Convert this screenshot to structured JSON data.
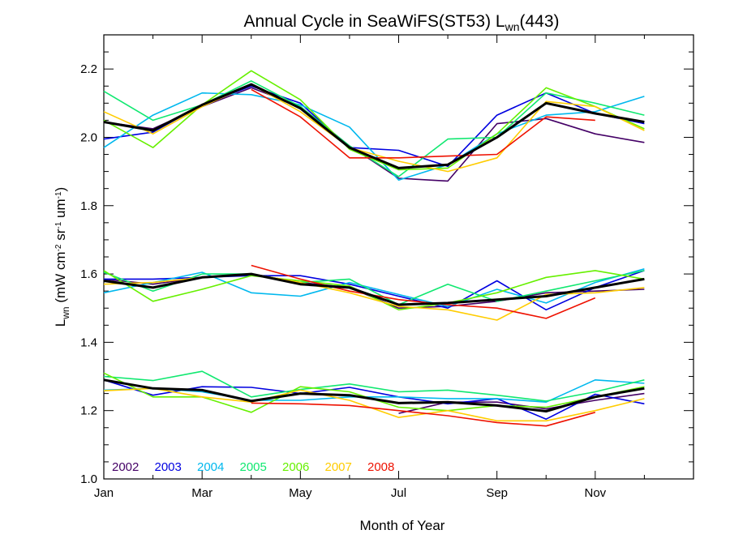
{
  "chart_data": {
    "type": "line",
    "title": {
      "main": "Annual Cycle in SeaWiFS(ST53) L",
      "sub": "wn",
      "suffix": "(443)"
    },
    "xlabel": "Month of Year",
    "ylabel": {
      "base": "L",
      "base_sub": "wn",
      "unit_open": " (mW cm",
      "exp1": "-2",
      "sr": " sr",
      "exp2": "-1",
      "um": " um",
      "exp3": "-1",
      "close": ")"
    },
    "xlim": [
      1,
      13
    ],
    "ylim": [
      1.0,
      2.3
    ],
    "x_ticks": [
      {
        "x": 1,
        "label": "Jan"
      },
      {
        "x": 3,
        "label": "Mar"
      },
      {
        "x": 5,
        "label": "May"
      },
      {
        "x": 7,
        "label": "Jul"
      },
      {
        "x": 9,
        "label": "Sep"
      },
      {
        "x": 11,
        "label": "Nov"
      }
    ],
    "x_minor_ticks": [
      2,
      4,
      6,
      8,
      10,
      12
    ],
    "y_ticks": [
      {
        "y": 1.0,
        "label": "1.0"
      },
      {
        "y": 1.2,
        "label": "1.2"
      },
      {
        "y": 1.4,
        "label": "1.4"
      },
      {
        "y": 1.6,
        "label": "1.6"
      },
      {
        "y": 1.8,
        "label": "1.8"
      },
      {
        "y": 2.0,
        "label": "2.0"
      },
      {
        "y": 2.2,
        "label": "2.2"
      }
    ],
    "y_minor_step": 0.05,
    "grid": false,
    "legend_position": "bottom-left inside plot",
    "groups": [
      "upper",
      "middle",
      "lower"
    ],
    "series": [
      {
        "name": "2002",
        "color": "#440066",
        "width": 1.6,
        "legend": true,
        "upper": [
          [
            1,
            2.045
          ],
          [
            2,
            2.025
          ],
          [
            3,
            2.09
          ],
          [
            4,
            2.145
          ],
          [
            5,
            2.09
          ],
          [
            6,
            1.975
          ],
          [
            7,
            1.88
          ],
          [
            8,
            1.872
          ],
          [
            9,
            2.04
          ],
          [
            10,
            2.055
          ],
          [
            11,
            2.01
          ],
          [
            12,
            1.985
          ]
        ],
        "middle": [
          [
            1,
            1.585
          ],
          [
            2,
            1.57
          ],
          [
            3,
            1.59
          ],
          [
            4,
            1.6
          ],
          [
            5,
            1.575
          ],
          [
            6,
            1.56
          ],
          [
            7,
            1.5
          ],
          [
            8,
            1.505
          ],
          [
            9,
            1.52
          ],
          [
            10,
            1.545
          ],
          [
            11,
            1.55
          ],
          [
            12,
            1.555
          ]
        ],
        "lower": [
          [
            7,
            1.192
          ],
          [
            8,
            1.225
          ],
          [
            9,
            1.225
          ],
          [
            10,
            1.205
          ],
          [
            11,
            1.23
          ],
          [
            12,
            1.25
          ]
        ]
      },
      {
        "name": "2003",
        "color": "#0000e0",
        "width": 1.6,
        "legend": true,
        "upper": [
          [
            1,
            1.995
          ],
          [
            2,
            2.015
          ],
          [
            3,
            2.095
          ],
          [
            4,
            2.15
          ],
          [
            5,
            2.1
          ],
          [
            6,
            1.97
          ],
          [
            7,
            1.962
          ],
          [
            8,
            1.915
          ],
          [
            9,
            2.065
          ],
          [
            10,
            2.13
          ],
          [
            11,
            2.07
          ],
          [
            12,
            2.04
          ]
        ],
        "middle": [
          [
            1,
            1.585
          ],
          [
            2,
            1.585
          ],
          [
            3,
            1.59
          ],
          [
            4,
            1.595
          ],
          [
            5,
            1.595
          ],
          [
            6,
            1.57
          ],
          [
            7,
            1.535
          ],
          [
            8,
            1.5
          ],
          [
            9,
            1.58
          ],
          [
            10,
            1.495
          ],
          [
            11,
            1.56
          ],
          [
            12,
            1.61
          ]
        ],
        "lower": [
          [
            1,
            1.29
          ],
          [
            2,
            1.245
          ],
          [
            3,
            1.27
          ],
          [
            4,
            1.268
          ],
          [
            5,
            1.25
          ],
          [
            6,
            1.268
          ],
          [
            7,
            1.24
          ],
          [
            8,
            1.22
          ],
          [
            9,
            1.235
          ],
          [
            10,
            1.175
          ],
          [
            11,
            1.248
          ],
          [
            12,
            1.22
          ]
        ]
      },
      {
        "name": "2004",
        "color": "#00b8ee",
        "width": 1.6,
        "legend": true,
        "upper": [
          [
            1,
            1.97
          ],
          [
            2,
            2.065
          ],
          [
            3,
            2.13
          ],
          [
            4,
            2.125
          ],
          [
            5,
            2.095
          ],
          [
            6,
            2.03
          ],
          [
            7,
            1.875
          ],
          [
            8,
            1.92
          ],
          [
            9,
            2.01
          ],
          [
            10,
            2.065
          ],
          [
            11,
            2.075
          ],
          [
            12,
            2.12
          ]
        ],
        "middle": [
          [
            1,
            1.545
          ],
          [
            2,
            1.575
          ],
          [
            3,
            1.605
          ],
          [
            4,
            1.545
          ],
          [
            5,
            1.535
          ],
          [
            6,
            1.575
          ],
          [
            7,
            1.54
          ],
          [
            8,
            1.505
          ],
          [
            9,
            1.555
          ],
          [
            10,
            1.515
          ],
          [
            11,
            1.575
          ],
          [
            12,
            1.615
          ]
        ],
        "lower": [
          [
            1,
            1.26
          ],
          [
            2,
            1.265
          ],
          [
            3,
            1.255
          ],
          [
            4,
            1.23
          ],
          [
            5,
            1.23
          ],
          [
            6,
            1.24
          ],
          [
            7,
            1.24
          ],
          [
            8,
            1.235
          ],
          [
            9,
            1.235
          ],
          [
            10,
            1.225
          ],
          [
            11,
            1.29
          ],
          [
            12,
            1.28
          ]
        ]
      },
      {
        "name": "2005",
        "color": "#10e870",
        "width": 1.6,
        "legend": true,
        "upper": [
          [
            1,
            2.135
          ],
          [
            2,
            2.05
          ],
          [
            3,
            2.095
          ],
          [
            4,
            2.165
          ],
          [
            5,
            2.09
          ],
          [
            6,
            1.975
          ],
          [
            7,
            1.885
          ],
          [
            8,
            1.995
          ],
          [
            9,
            2.0
          ],
          [
            10,
            2.13
          ],
          [
            11,
            2.1
          ],
          [
            12,
            2.065
          ]
        ],
        "middle": [
          [
            1,
            1.605
          ],
          [
            2,
            1.55
          ],
          [
            3,
            1.6
          ],
          [
            4,
            1.6
          ],
          [
            5,
            1.575
          ],
          [
            6,
            1.585
          ],
          [
            7,
            1.51
          ],
          [
            8,
            1.57
          ],
          [
            9,
            1.52
          ],
          [
            10,
            1.55
          ],
          [
            11,
            1.58
          ],
          [
            12,
            1.61
          ]
        ],
        "lower": [
          [
            1,
            1.3
          ],
          [
            2,
            1.288
          ],
          [
            3,
            1.315
          ],
          [
            4,
            1.24
          ],
          [
            5,
            1.262
          ],
          [
            6,
            1.278
          ],
          [
            7,
            1.255
          ],
          [
            8,
            1.26
          ],
          [
            9,
            1.245
          ],
          [
            10,
            1.228
          ],
          [
            11,
            1.255
          ],
          [
            12,
            1.29
          ]
        ]
      },
      {
        "name": "2006",
        "color": "#66f000",
        "width": 1.6,
        "legend": true,
        "upper": [
          [
            1,
            2.05
          ],
          [
            2,
            1.97
          ],
          [
            3,
            2.095
          ],
          [
            4,
            2.195
          ],
          [
            5,
            2.11
          ],
          [
            6,
            1.965
          ],
          [
            7,
            1.905
          ],
          [
            8,
            1.91
          ],
          [
            9,
            2.01
          ],
          [
            10,
            2.145
          ],
          [
            11,
            2.09
          ],
          [
            12,
            2.025
          ]
        ],
        "middle": [
          [
            1,
            1.61
          ],
          [
            2,
            1.52
          ],
          [
            3,
            1.555
          ],
          [
            4,
            1.595
          ],
          [
            5,
            1.58
          ],
          [
            6,
            1.565
          ],
          [
            7,
            1.495
          ],
          [
            8,
            1.515
          ],
          [
            9,
            1.545
          ],
          [
            10,
            1.59
          ],
          [
            11,
            1.61
          ],
          [
            12,
            1.585
          ]
        ],
        "lower": [
          [
            1,
            1.31
          ],
          [
            2,
            1.24
          ],
          [
            3,
            1.24
          ],
          [
            4,
            1.195
          ],
          [
            5,
            1.27
          ],
          [
            6,
            1.255
          ],
          [
            7,
            1.21
          ],
          [
            8,
            1.2
          ],
          [
            9,
            1.215
          ],
          [
            10,
            1.21
          ],
          [
            11,
            1.24
          ],
          [
            12,
            1.27
          ]
        ]
      },
      {
        "name": "2007",
        "color": "#ffcc00",
        "width": 1.6,
        "legend": true,
        "upper": [
          [
            1,
            2.075
          ],
          [
            2,
            2.01
          ],
          [
            3,
            2.09
          ],
          [
            4,
            2.155
          ],
          [
            5,
            2.075
          ],
          [
            6,
            1.97
          ],
          [
            7,
            1.93
          ],
          [
            8,
            1.9
          ],
          [
            9,
            1.94
          ],
          [
            10,
            2.105
          ],
          [
            11,
            2.09
          ],
          [
            12,
            2.02
          ]
        ],
        "middle": [
          [
            1,
            1.57
          ],
          [
            2,
            1.575
          ],
          [
            3,
            1.59
          ],
          [
            4,
            1.6
          ],
          [
            5,
            1.575
          ],
          [
            6,
            1.545
          ],
          [
            7,
            1.505
          ],
          [
            8,
            1.495
          ],
          [
            9,
            1.465
          ],
          [
            10,
            1.54
          ],
          [
            11,
            1.545
          ],
          [
            12,
            1.56
          ]
        ],
        "lower": [
          [
            1,
            1.258
          ],
          [
            2,
            1.265
          ],
          [
            3,
            1.24
          ],
          [
            4,
            1.225
          ],
          [
            5,
            1.26
          ],
          [
            6,
            1.23
          ],
          [
            7,
            1.18
          ],
          [
            8,
            1.2
          ],
          [
            9,
            1.17
          ],
          [
            10,
            1.17
          ],
          [
            11,
            1.2
          ],
          [
            12,
            1.235
          ]
        ]
      },
      {
        "name": "2008",
        "color": "#ee1100",
        "width": 1.6,
        "legend": true,
        "upper": [
          [
            4,
            2.14
          ],
          [
            5,
            2.06
          ],
          [
            6,
            1.94
          ],
          [
            7,
            1.94
          ],
          [
            8,
            1.945
          ],
          [
            9,
            1.95
          ],
          [
            10,
            2.06
          ],
          [
            11,
            2.05
          ]
        ],
        "middle": [
          [
            4,
            1.625
          ],
          [
            5,
            1.585
          ],
          [
            6,
            1.55
          ],
          [
            7,
            1.525
          ],
          [
            8,
            1.51
          ],
          [
            9,
            1.5
          ],
          [
            10,
            1.47
          ],
          [
            11,
            1.53
          ]
        ],
        "lower": [
          [
            4,
            1.222
          ],
          [
            5,
            1.22
          ],
          [
            6,
            1.215
          ],
          [
            7,
            1.2
          ],
          [
            8,
            1.185
          ],
          [
            9,
            1.165
          ],
          [
            10,
            1.155
          ],
          [
            11,
            1.195
          ]
        ]
      },
      {
        "name": "",
        "color": "#000000",
        "width": 3,
        "legend": false,
        "upper": [
          [
            1,
            2.045
          ],
          [
            2,
            2.02
          ],
          [
            3,
            2.095
          ],
          [
            4,
            2.155
          ],
          [
            5,
            2.085
          ],
          [
            6,
            1.97
          ],
          [
            7,
            1.91
          ],
          [
            8,
            1.92
          ],
          [
            9,
            2.0
          ],
          [
            10,
            2.1
          ],
          [
            11,
            2.07
          ],
          [
            12,
            2.045
          ]
        ],
        "middle": [
          [
            1,
            1.58
          ],
          [
            2,
            1.56
          ],
          [
            3,
            1.59
          ],
          [
            4,
            1.6
          ],
          [
            5,
            1.57
          ],
          [
            6,
            1.56
          ],
          [
            7,
            1.51
          ],
          [
            8,
            1.515
          ],
          [
            9,
            1.525
          ],
          [
            10,
            1.535
          ],
          [
            11,
            1.56
          ],
          [
            12,
            1.585
          ]
        ],
        "lower": [
          [
            1,
            1.29
          ],
          [
            2,
            1.265
          ],
          [
            3,
            1.26
          ],
          [
            4,
            1.228
          ],
          [
            5,
            1.25
          ],
          [
            6,
            1.245
          ],
          [
            7,
            1.222
          ],
          [
            8,
            1.225
          ],
          [
            9,
            1.215
          ],
          [
            10,
            1.198
          ],
          [
            11,
            1.24
          ],
          [
            12,
            1.265
          ]
        ]
      }
    ]
  }
}
